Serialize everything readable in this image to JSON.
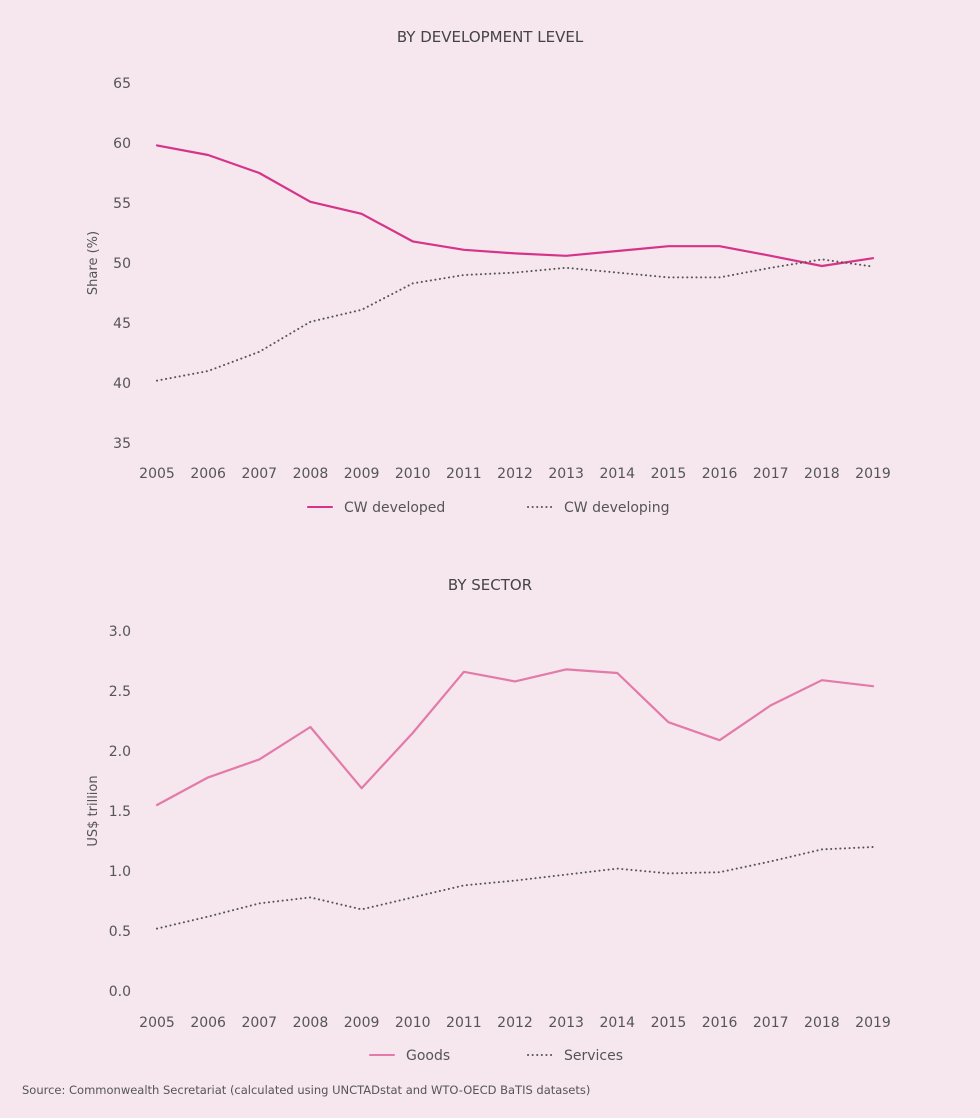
{
  "chart_data": [
    {
      "type": "line",
      "title": "BY DEVELOPMENT LEVEL",
      "xlabel": "",
      "ylabel": "Share (%)",
      "ylim": [
        35,
        65
      ],
      "yticks": [
        "35",
        "40",
        "45",
        "50",
        "55",
        "60",
        "65"
      ],
      "categories": [
        "2005",
        "2006",
        "2007",
        "2008",
        "2009",
        "2010",
        "2011",
        "2012",
        "2013",
        "2014",
        "2015",
        "2016",
        "2017",
        "2018",
        "2019"
      ],
      "grid": false,
      "legend": "bottom",
      "series": [
        {
          "name": "CW developed",
          "style": "solid",
          "color": "#d6338a",
          "values": [
            59.8,
            59.0,
            57.5,
            55.1,
            54.1,
            51.8,
            51.1,
            50.8,
            50.6,
            51.0,
            51.4,
            51.4,
            50.6,
            49.75,
            50.4
          ]
        },
        {
          "name": "CW developing",
          "style": "dotted",
          "color": "#555555",
          "values": [
            40.2,
            41.0,
            42.6,
            45.1,
            46.1,
            48.3,
            49.0,
            49.2,
            49.6,
            49.2,
            48.8,
            48.8,
            49.6,
            50.3,
            49.7
          ]
        }
      ]
    },
    {
      "type": "line",
      "title": "BY SECTOR",
      "xlabel": "",
      "ylabel": "US$ trillion",
      "ylim": [
        0,
        3
      ],
      "yticks": [
        "0.0",
        "0.5",
        "1.0",
        "1.5",
        "2.0",
        "2.5",
        "3.0"
      ],
      "categories": [
        "2005",
        "2006",
        "2007",
        "2008",
        "2009",
        "2010",
        "2011",
        "2012",
        "2013",
        "2014",
        "2015",
        "2016",
        "2017",
        "2018",
        "2019"
      ],
      "grid": false,
      "legend": "bottom",
      "series": [
        {
          "name": "Goods",
          "style": "solid",
          "color": "#e37aaa",
          "values": [
            1.55,
            1.78,
            1.93,
            2.2,
            1.69,
            2.15,
            2.66,
            2.58,
            2.68,
            2.65,
            2.24,
            2.09,
            2.38,
            2.59,
            2.54
          ]
        },
        {
          "name": "Services",
          "style": "dotted",
          "color": "#555555",
          "values": [
            0.52,
            0.62,
            0.73,
            0.78,
            0.68,
            0.78,
            0.88,
            0.92,
            0.97,
            1.02,
            0.98,
            0.99,
            1.08,
            1.18,
            1.2
          ]
        }
      ]
    }
  ],
  "source": "Source: Commonwealth Secretariat (calculated using UNCTADstat and WTO-OECD BaTIS datasets)"
}
